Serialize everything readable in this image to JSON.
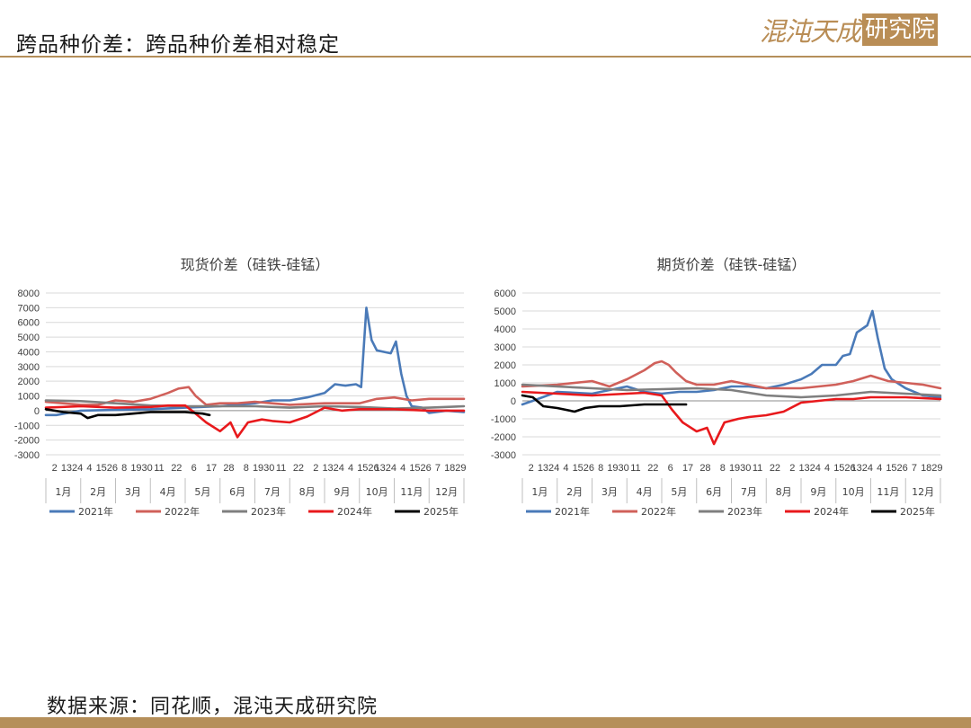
{
  "header": {
    "title": "跨品种价差：跨品种价差相对稳定",
    "logo_left": "混沌天成",
    "logo_right": "研究院"
  },
  "source": "数据来源：同花顺，混沌天成研究院",
  "chart_data": [
    {
      "type": "line",
      "title": "现货价差（硅铁-硅锰）",
      "ylim": [
        -3000,
        8000
      ],
      "yticks": [
        -3000,
        -2000,
        -1000,
        0,
        1000,
        2000,
        3000,
        4000,
        5000,
        6000,
        7000,
        8000
      ],
      "grid": true,
      "legend_position": "bottom",
      "x_day_labels": [
        "2",
        "1324",
        "4",
        "1526",
        "8",
        "1930",
        "11",
        "22",
        "6",
        "17",
        "28",
        "8",
        "1930",
        "11",
        "22",
        "2",
        "1324",
        "4",
        "1526",
        "1324",
        "4",
        "1526",
        "7",
        "1829"
      ],
      "months": [
        "1月",
        "2月",
        "3月",
        "4月",
        "5月",
        "6月",
        "7月",
        "8月",
        "9月",
        "10月",
        "11月",
        "12月"
      ],
      "series": [
        {
          "name": "2021年",
          "color": "#4a7ab8",
          "x": [
            0,
            0.3,
            1,
            2,
            3,
            4,
            5,
            6,
            6.5,
            7,
            7.5,
            8,
            8.3,
            8.6,
            8.9,
            9.05,
            9.2,
            9.35,
            9.5,
            9.7,
            9.9,
            10.05,
            10.2,
            10.35,
            10.5,
            10.8,
            11,
            11.5,
            12
          ],
          "y": [
            -300,
            -300,
            0,
            50,
            100,
            200,
            300,
            500,
            700,
            700,
            900,
            1200,
            1800,
            1700,
            1800,
            1600,
            7000,
            4800,
            4100,
            4000,
            3900,
            4700,
            2500,
            1000,
            300,
            200,
            -150,
            0,
            -100
          ]
        },
        {
          "name": "2022年",
          "color": "#d0605a",
          "x": [
            0,
            1,
            1.5,
            2,
            2.5,
            3,
            3.5,
            3.8,
            4.1,
            4.3,
            4.6,
            5,
            5.5,
            6,
            7,
            8,
            9,
            9.5,
            10,
            10.5,
            11,
            12
          ],
          "y": [
            600,
            400,
            400,
            700,
            600,
            800,
            1200,
            1500,
            1600,
            1000,
            400,
            500,
            500,
            600,
            400,
            500,
            500,
            800,
            900,
            700,
            800,
            800
          ]
        },
        {
          "name": "2023年",
          "color": "#7f7f7f",
          "x": [
            0,
            1,
            2,
            3,
            4,
            5,
            6,
            7,
            8,
            9,
            10,
            11,
            12
          ],
          "y": [
            700,
            650,
            500,
            350,
            300,
            300,
            300,
            200,
            300,
            250,
            150,
            200,
            300
          ]
        },
        {
          "name": "2024年",
          "color": "#e8191c",
          "x": [
            0,
            1,
            2,
            3,
            3.5,
            4,
            4.3,
            4.6,
            5,
            5.3,
            5.5,
            5.8,
            6.2,
            6.5,
            7,
            7.5,
            8,
            8.5,
            9,
            9.5,
            10,
            11,
            12
          ],
          "y": [
            200,
            300,
            200,
            250,
            350,
            350,
            -200,
            -800,
            -1400,
            -800,
            -1800,
            -800,
            -600,
            -700,
            -800,
            -400,
            200,
            0,
            100,
            100,
            100,
            0,
            0
          ]
        },
        {
          "name": "2025年",
          "color": "#000000",
          "x": [
            0,
            0.5,
            1,
            1.2,
            1.5,
            2,
            2.5,
            3,
            3.5,
            4,
            4.5,
            4.7
          ],
          "y": [
            100,
            -100,
            -200,
            -500,
            -300,
            -300,
            -200,
            -100,
            -100,
            -100,
            -200,
            -300
          ]
        }
      ]
    },
    {
      "type": "line",
      "title": "期货价差（硅铁-硅锰）",
      "ylim": [
        -3000,
        6000
      ],
      "yticks": [
        -3000,
        -2000,
        -1000,
        0,
        1000,
        2000,
        3000,
        4000,
        5000,
        6000
      ],
      "grid": true,
      "legend_position": "bottom",
      "x_day_labels": [
        "2",
        "1324",
        "4",
        "1526",
        "8",
        "1930",
        "11",
        "22",
        "6",
        "17",
        "28",
        "8",
        "1930",
        "11",
        "22",
        "2",
        "1324",
        "4",
        "1526",
        "1324",
        "4",
        "1526",
        "7",
        "1829"
      ],
      "months": [
        "1月",
        "2月",
        "3月",
        "4月",
        "5月",
        "6月",
        "7月",
        "8月",
        "9月",
        "10月",
        "11月",
        "12月"
      ],
      "series": [
        {
          "name": "2021年",
          "color": "#4a7ab8",
          "x": [
            0,
            0.3,
            1,
            2,
            2.5,
            3,
            3.5,
            4,
            4.5,
            5,
            5.5,
            6,
            6.5,
            7,
            7.5,
            8,
            8.3,
            8.6,
            9,
            9.2,
            9.4,
            9.6,
            9.9,
            10.05,
            10.2,
            10.4,
            10.6,
            11,
            11.5,
            12
          ],
          "y": [
            -200,
            0,
            500,
            400,
            600,
            800,
            500,
            400,
            500,
            500,
            600,
            800,
            800,
            700,
            900,
            1200,
            1500,
            2000,
            2000,
            2500,
            2600,
            3800,
            4200,
            5000,
            3500,
            1800,
            1200,
            700,
            300,
            200
          ]
        },
        {
          "name": "2022年",
          "color": "#d0605a",
          "x": [
            0,
            1,
            2,
            2.5,
            3,
            3.5,
            3.8,
            4,
            4.2,
            4.4,
            4.7,
            5,
            5.5,
            6,
            7,
            8,
            9,
            9.5,
            10,
            10.5,
            11,
            11.5,
            12
          ],
          "y": [
            800,
            900,
            1100,
            800,
            1200,
            1700,
            2100,
            2200,
            2000,
            1600,
            1100,
            900,
            900,
            1100,
            700,
            700,
            900,
            1100,
            1400,
            1100,
            1000,
            900,
            700
          ]
        },
        {
          "name": "2023年",
          "color": "#7f7f7f",
          "x": [
            0,
            1,
            2,
            3,
            4,
            5,
            6,
            7,
            8,
            9,
            10,
            11,
            12
          ],
          "y": [
            900,
            800,
            700,
            600,
            650,
            700,
            600,
            300,
            200,
            300,
            500,
            400,
            300
          ]
        },
        {
          "name": "2024年",
          "color": "#e8191c",
          "x": [
            0,
            1,
            2,
            3,
            3.5,
            4,
            4.3,
            4.6,
            5,
            5.3,
            5.5,
            5.8,
            6.2,
            6.5,
            7,
            7.5,
            8,
            8.5,
            9,
            9.5,
            10,
            11,
            12
          ],
          "y": [
            500,
            400,
            300,
            400,
            450,
            300,
            -500,
            -1200,
            -1700,
            -1500,
            -2400,
            -1200,
            -1000,
            -900,
            -800,
            -600,
            -100,
            0,
            100,
            100,
            200,
            200,
            100
          ]
        },
        {
          "name": "2025年",
          "color": "#000000",
          "x": [
            0,
            0.3,
            0.6,
            1,
            1.5,
            1.8,
            2.2,
            2.8,
            3.5,
            4,
            4.5,
            4.7
          ],
          "y": [
            300,
            200,
            -300,
            -400,
            -600,
            -400,
            -300,
            -300,
            -200,
            -200,
            -200,
            -200
          ]
        }
      ]
    }
  ]
}
